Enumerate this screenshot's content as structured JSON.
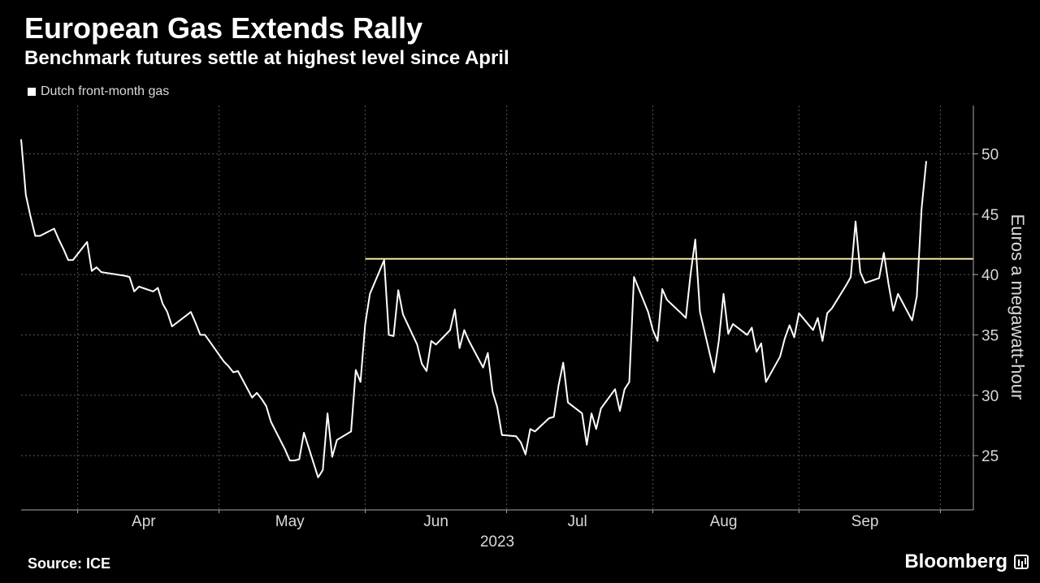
{
  "header": {
    "title": "European Gas Extends Rally",
    "subtitle": "Benchmark futures settle at highest level since April"
  },
  "footer": {
    "source": "Source: ICE",
    "brand": "Bloomberg"
  },
  "colors": {
    "background": "#000000",
    "line": "#ffffff",
    "reference_line": "#f2e6a6",
    "grid": "#555555",
    "text": "#d9d9d9"
  },
  "chart_data": {
    "type": "line",
    "title": "European Gas Extends Rally",
    "subtitle": "Benchmark futures settle at highest level since April",
    "ylabel": "Euros a megawatt-hour",
    "xlabel": "2023",
    "y_axis_side": "right",
    "ylim": [
      20.5,
      54
    ],
    "yticks": [
      25,
      30,
      35,
      40,
      45,
      50
    ],
    "x_range": [
      "2023-03-20",
      "2023-10-08"
    ],
    "x_tick_labels": [
      {
        "label": "Apr",
        "date": "2023-04-15"
      },
      {
        "label": "May",
        "date": "2023-05-16"
      },
      {
        "label": "Jun",
        "date": "2023-06-16"
      },
      {
        "label": "Jul",
        "date": "2023-07-16"
      },
      {
        "label": "Aug",
        "date": "2023-08-16"
      },
      {
        "label": "Sep",
        "date": "2023-09-15"
      }
    ],
    "x_gridlines": [
      "2023-04-01",
      "2023-05-01",
      "2023-06-01",
      "2023-07-01",
      "2023-08-01",
      "2023-09-01",
      "2023-10-01"
    ],
    "year_label": "2023",
    "grid": true,
    "legend": {
      "position": "top-left",
      "entries": [
        "Dutch front-month gas"
      ]
    },
    "reference_line": {
      "y": 41.3,
      "from": "2023-06-01",
      "to": "2023-10-08",
      "color": "#f2e6a6"
    },
    "series": [
      {
        "name": "Dutch front-month gas",
        "color": "#ffffff",
        "points": [
          [
            "2023-03-20",
            51.2
          ],
          [
            "2023-03-21",
            46.6
          ],
          [
            "2023-03-22",
            44.8
          ],
          [
            "2023-03-23",
            43.2
          ],
          [
            "2023-03-24",
            43.2
          ],
          [
            "2023-03-27",
            43.8
          ],
          [
            "2023-03-28",
            42.9
          ],
          [
            "2023-03-29",
            42.1
          ],
          [
            "2023-03-30",
            41.2
          ],
          [
            "2023-03-31",
            41.2
          ],
          [
            "2023-04-03",
            42.7
          ],
          [
            "2023-04-04",
            40.3
          ],
          [
            "2023-04-05",
            40.6
          ],
          [
            "2023-04-06",
            40.2
          ],
          [
            "2023-04-11",
            39.9
          ],
          [
            "2023-04-12",
            39.8
          ],
          [
            "2023-04-13",
            38.6
          ],
          [
            "2023-04-14",
            39.0
          ],
          [
            "2023-04-17",
            38.6
          ],
          [
            "2023-04-18",
            38.9
          ],
          [
            "2023-04-19",
            37.6
          ],
          [
            "2023-04-20",
            36.9
          ],
          [
            "2023-04-21",
            35.7
          ],
          [
            "2023-04-24",
            36.6
          ],
          [
            "2023-04-25",
            36.9
          ],
          [
            "2023-04-26",
            36.0
          ],
          [
            "2023-04-27",
            35.0
          ],
          [
            "2023-04-28",
            35.0
          ],
          [
            "2023-05-02",
            32.8
          ],
          [
            "2023-05-03",
            32.4
          ],
          [
            "2023-05-04",
            31.9
          ],
          [
            "2023-05-05",
            32.0
          ],
          [
            "2023-05-08",
            29.8
          ],
          [
            "2023-05-09",
            30.2
          ],
          [
            "2023-05-10",
            29.7
          ],
          [
            "2023-05-11",
            29.1
          ],
          [
            "2023-05-12",
            27.8
          ],
          [
            "2023-05-15",
            25.5
          ],
          [
            "2023-05-16",
            24.6
          ],
          [
            "2023-05-17",
            24.6
          ],
          [
            "2023-05-18",
            24.7
          ],
          [
            "2023-05-19",
            26.9
          ],
          [
            "2023-05-22",
            23.2
          ],
          [
            "2023-05-23",
            23.8
          ],
          [
            "2023-05-24",
            28.5
          ],
          [
            "2023-05-25",
            24.9
          ],
          [
            "2023-05-26",
            26.3
          ],
          [
            "2023-05-29",
            27.0
          ],
          [
            "2023-05-30",
            32.1
          ],
          [
            "2023-05-31",
            31.1
          ],
          [
            "2023-06-01",
            35.9
          ],
          [
            "2023-06-02",
            38.4
          ],
          [
            "2023-06-05",
            41.2
          ],
          [
            "2023-06-06",
            35.0
          ],
          [
            "2023-06-07",
            34.9
          ],
          [
            "2023-06-08",
            38.7
          ],
          [
            "2023-06-09",
            36.7
          ],
          [
            "2023-06-12",
            34.2
          ],
          [
            "2023-06-13",
            32.6
          ],
          [
            "2023-06-14",
            32.0
          ],
          [
            "2023-06-15",
            34.5
          ],
          [
            "2023-06-16",
            34.2
          ],
          [
            "2023-06-19",
            35.4
          ],
          [
            "2023-06-20",
            37.1
          ],
          [
            "2023-06-21",
            33.9
          ],
          [
            "2023-06-22",
            35.4
          ],
          [
            "2023-06-23",
            34.5
          ],
          [
            "2023-06-26",
            32.3
          ],
          [
            "2023-06-27",
            33.5
          ],
          [
            "2023-06-28",
            30.3
          ],
          [
            "2023-06-29",
            29.0
          ],
          [
            "2023-06-30",
            26.7
          ],
          [
            "2023-07-03",
            26.6
          ],
          [
            "2023-07-04",
            26.1
          ],
          [
            "2023-07-05",
            25.1
          ],
          [
            "2023-07-06",
            27.2
          ],
          [
            "2023-07-07",
            27.0
          ],
          [
            "2023-07-10",
            28.1
          ],
          [
            "2023-07-11",
            28.2
          ],
          [
            "2023-07-12",
            30.8
          ],
          [
            "2023-07-13",
            32.7
          ],
          [
            "2023-07-14",
            29.4
          ],
          [
            "2023-07-17",
            28.5
          ],
          [
            "2023-07-18",
            25.9
          ],
          [
            "2023-07-19",
            28.5
          ],
          [
            "2023-07-20",
            27.2
          ],
          [
            "2023-07-21",
            28.9
          ],
          [
            "2023-07-24",
            30.5
          ],
          [
            "2023-07-25",
            28.7
          ],
          [
            "2023-07-26",
            30.5
          ],
          [
            "2023-07-27",
            31.1
          ],
          [
            "2023-07-28",
            39.8
          ],
          [
            "2023-07-31",
            36.9
          ],
          [
            "2023-08-01",
            35.4
          ],
          [
            "2023-08-02",
            34.5
          ],
          [
            "2023-08-03",
            38.8
          ],
          [
            "2023-08-04",
            37.9
          ],
          [
            "2023-08-07",
            36.8
          ],
          [
            "2023-08-08",
            36.4
          ],
          [
            "2023-08-09",
            40.0
          ],
          [
            "2023-08-10",
            42.9
          ],
          [
            "2023-08-11",
            36.9
          ],
          [
            "2023-08-14",
            31.9
          ],
          [
            "2023-08-15",
            34.5
          ],
          [
            "2023-08-16",
            38.4
          ],
          [
            "2023-08-17",
            35.1
          ],
          [
            "2023-08-18",
            35.9
          ],
          [
            "2023-08-21",
            35.0
          ],
          [
            "2023-08-22",
            35.6
          ],
          [
            "2023-08-23",
            33.6
          ],
          [
            "2023-08-24",
            34.3
          ],
          [
            "2023-08-25",
            31.1
          ],
          [
            "2023-08-28",
            33.2
          ],
          [
            "2023-08-29",
            34.7
          ],
          [
            "2023-08-30",
            35.8
          ],
          [
            "2023-08-31",
            34.8
          ],
          [
            "2023-09-01",
            36.8
          ],
          [
            "2023-09-04",
            35.4
          ],
          [
            "2023-09-05",
            36.4
          ],
          [
            "2023-09-06",
            34.5
          ],
          [
            "2023-09-07",
            36.8
          ],
          [
            "2023-09-08",
            37.2
          ],
          [
            "2023-09-11",
            39.1
          ],
          [
            "2023-09-12",
            39.8
          ],
          [
            "2023-09-13",
            44.4
          ],
          [
            "2023-09-14",
            40.2
          ],
          [
            "2023-09-15",
            39.3
          ],
          [
            "2023-09-18",
            39.7
          ],
          [
            "2023-09-19",
            41.8
          ],
          [
            "2023-09-20",
            39.2
          ],
          [
            "2023-09-21",
            37.0
          ],
          [
            "2023-09-22",
            38.4
          ],
          [
            "2023-09-25",
            36.2
          ],
          [
            "2023-09-26",
            38.2
          ],
          [
            "2023-09-27",
            45.4
          ],
          [
            "2023-09-28",
            49.4
          ]
        ]
      }
    ]
  }
}
